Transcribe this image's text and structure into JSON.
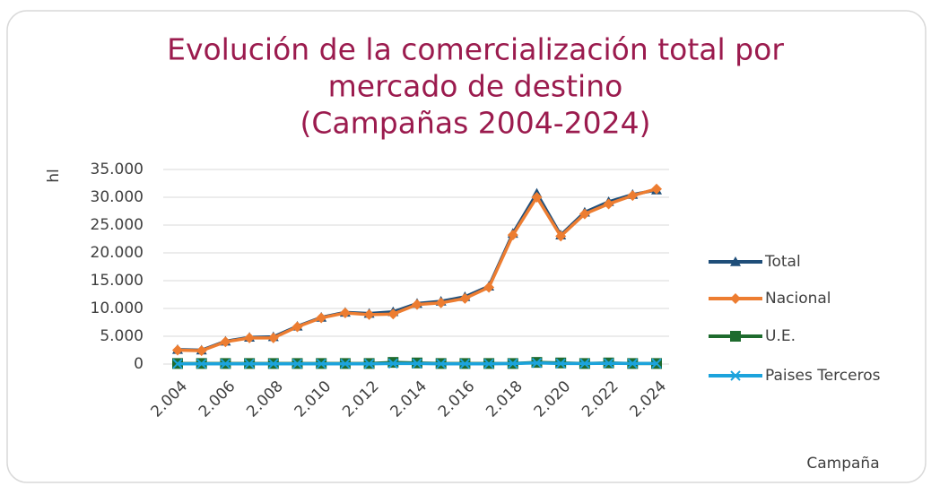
{
  "chart_data": {
    "type": "line",
    "title": [
      "Evolución de la comercialización total por",
      "mercado de destino",
      "(Campañas 2004-2024)"
    ],
    "y_label": "hl",
    "x_label": "Campaña",
    "x": [
      2004,
      2005,
      2006,
      2007,
      2008,
      2009,
      2010,
      2011,
      2012,
      2013,
      2014,
      2015,
      2016,
      2017,
      2018,
      2019,
      2020,
      2021,
      2022,
      2023,
      2024
    ],
    "series": [
      {
        "name": "Total",
        "color": "#1f4e79",
        "marker": "triangle",
        "values": [
          2600,
          2500,
          4100,
          4800,
          4900,
          6800,
          8400,
          9300,
          9100,
          9400,
          10900,
          11300,
          12100,
          14000,
          23500,
          30700,
          23200,
          27300,
          29200,
          30500,
          31300
        ]
      },
      {
        "name": "Nacional",
        "color": "#ed7d31",
        "marker": "diamond",
        "values": [
          2500,
          2400,
          4000,
          4700,
          4700,
          6700,
          8300,
          9200,
          8900,
          9000,
          10700,
          11000,
          11800,
          13800,
          23200,
          30000,
          23000,
          27000,
          28800,
          30300,
          31500
        ]
      },
      {
        "name": "U.E.",
        "color": "#1e6b2e",
        "marker": "square",
        "values": [
          100,
          100,
          100,
          100,
          100,
          100,
          100,
          100,
          100,
          300,
          200,
          100,
          100,
          100,
          100,
          300,
          200,
          100,
          200,
          100,
          100
        ]
      },
      {
        "name": "Paises Terceros",
        "color": "#1ca3dc",
        "marker": "x",
        "values": [
          50,
          50,
          50,
          50,
          50,
          50,
          50,
          50,
          50,
          100,
          100,
          50,
          50,
          50,
          100,
          200,
          100,
          100,
          150,
          100,
          100
        ]
      }
    ],
    "xlim": [
      2004,
      2024
    ],
    "xticks": [
      {
        "value": 2004,
        "label": "2.004"
      },
      {
        "value": 2006,
        "label": "2.006"
      },
      {
        "value": 2008,
        "label": "2.008"
      },
      {
        "value": 2010,
        "label": "2.010"
      },
      {
        "value": 2012,
        "label": "2.012"
      },
      {
        "value": 2014,
        "label": "2.014"
      },
      {
        "value": 2016,
        "label": "2.016"
      },
      {
        "value": 2018,
        "label": "2.018"
      },
      {
        "value": 2020,
        "label": "2.020"
      },
      {
        "value": 2022,
        "label": "2.022"
      },
      {
        "value": 2024,
        "label": "2.024"
      }
    ],
    "ylim": [
      0,
      35000
    ],
    "yticks": [
      0,
      {
        "value": 5000,
        "label": "5.000"
      },
      {
        "value": 10000,
        "label": "10.000"
      },
      {
        "value": 15000,
        "label": "15.000"
      },
      {
        "value": 20000,
        "label": "20.000"
      },
      {
        "value": 25000,
        "label": "25.000"
      },
      {
        "value": 30000,
        "label": "30.000"
      },
      {
        "value": 35000,
        "label": "35.000"
      }
    ],
    "grid": true,
    "legend": "right"
  }
}
